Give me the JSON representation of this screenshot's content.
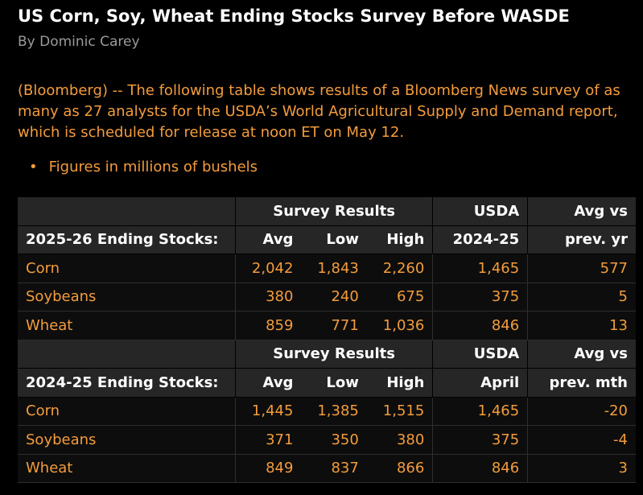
{
  "header": {
    "title": "US Corn, Soy, Wheat Ending Stocks Survey Before WASDE",
    "byline": "By Dominic Carey"
  },
  "body": {
    "paragraph": "(Bloomberg) -- The following table shows results of a Bloomberg News survey of as many as 27 analysts for the USDA’s World Agricultural Supply and Demand report, which is scheduled for release at noon ET on May 12.",
    "bullet": "Figures in millions of bushels"
  },
  "table": {
    "sections": [
      {
        "group_header": {
          "survey": "Survey Results",
          "usda": "USDA",
          "diff": "Avg vs"
        },
        "column_header": [
          "2025-26 Ending Stocks:",
          "Avg",
          "Low",
          "High",
          "2024-25",
          "prev. yr"
        ],
        "rows": [
          [
            "Corn",
            "2,042",
            "1,843",
            "2,260",
            "1,465",
            "577"
          ],
          [
            "Soybeans",
            "380",
            "240",
            "675",
            "375",
            "5"
          ],
          [
            "Wheat",
            "859",
            "771",
            "1,036",
            "846",
            "13"
          ]
        ]
      },
      {
        "group_header": {
          "survey": "Survey Results",
          "usda": "USDA",
          "diff": "Avg vs"
        },
        "column_header": [
          "2024-25 Ending Stocks:",
          "Avg",
          "Low",
          "High",
          "April",
          "prev. mth"
        ],
        "rows": [
          [
            "Corn",
            "1,445",
            "1,385",
            "1,515",
            "1,465",
            "-20"
          ],
          [
            "Soybeans",
            "371",
            "350",
            "380",
            "375",
            "-4"
          ],
          [
            "Wheat",
            "849",
            "837",
            "866",
            "846",
            "3"
          ]
        ]
      }
    ]
  }
}
